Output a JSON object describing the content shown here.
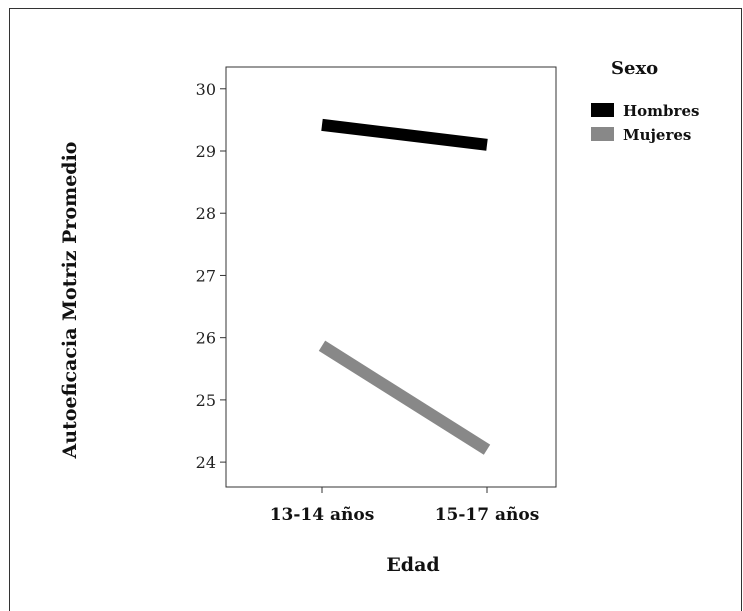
{
  "chart_data": {
    "type": "line",
    "xlabel": "Edad",
    "ylabel": "Autoeficacia Motriz Promedio",
    "categories": [
      "13-14 años",
      "15-17 años"
    ],
    "yticks": [
      24,
      25,
      26,
      27,
      28,
      29,
      30
    ],
    "ylim": [
      23.6,
      30.35
    ],
    "grid": false,
    "legend": {
      "title": "Sexo",
      "placement": "right"
    },
    "series": [
      {
        "name": "Hombres",
        "values": [
          29.42,
          29.1
        ],
        "color": "#000000"
      },
      {
        "name": "Mujeres",
        "values": [
          25.87,
          24.2
        ],
        "color": "#888888"
      }
    ]
  }
}
